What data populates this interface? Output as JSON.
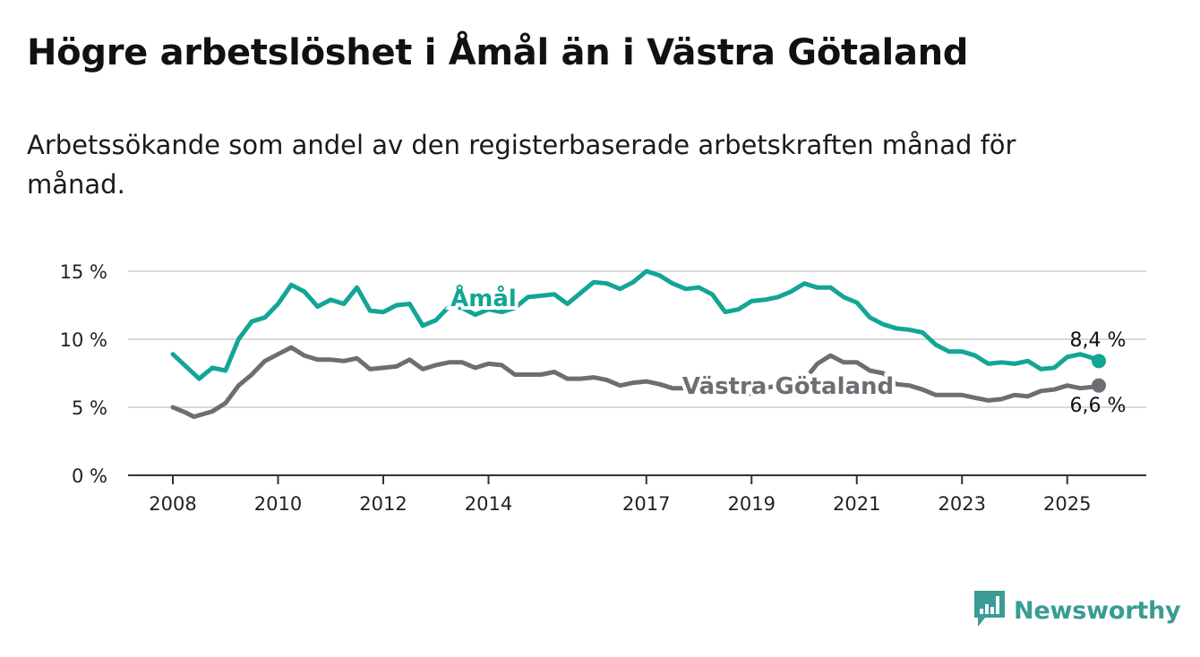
{
  "title": "Högre arbetslöshet i Åmål än i Västra Götaland",
  "subtitle": "Arbetssökande som andel av den registerbaserade arbetskraften månad för månad.",
  "brand": "Newsworthy",
  "colors": {
    "amal": "#13a596",
    "vg": "#6e6d74",
    "grid": "#d9d9d9",
    "axis": "#333333",
    "brand": "#3a9c93"
  },
  "chart_data": {
    "type": "line",
    "title": "Högre arbetslöshet i Åmål än i Västra Götaland",
    "subtitle": "Arbetssökande som andel av den registerbaserade arbetskraften månad för månad.",
    "x_ticks": [
      "2008",
      "2010",
      "2012",
      "2014",
      "2017",
      "2019",
      "2021",
      "2023",
      "2025"
    ],
    "y_ticks": [
      "0 %",
      "5 %",
      "10 %",
      "15 %"
    ],
    "xlim": [
      2008.0,
      2026.4
    ],
    "ylim": [
      0,
      15.7
    ],
    "grid": "horizontal",
    "legend": "direct labels on lines",
    "series": [
      {
        "name": "Åmål",
        "end_label": "8,4 %",
        "points": [
          [
            2008.0,
            8.9
          ],
          [
            2008.25,
            8.0
          ],
          [
            2008.5,
            7.1
          ],
          [
            2008.75,
            7.9
          ],
          [
            2009.0,
            7.7
          ],
          [
            2009.25,
            10.0
          ],
          [
            2009.5,
            11.3
          ],
          [
            2009.75,
            11.6
          ],
          [
            2010.0,
            12.6
          ],
          [
            2010.25,
            14.0
          ],
          [
            2010.5,
            13.5
          ],
          [
            2010.75,
            12.4
          ],
          [
            2011.0,
            12.9
          ],
          [
            2011.25,
            12.6
          ],
          [
            2011.5,
            13.8
          ],
          [
            2011.75,
            12.1
          ],
          [
            2012.0,
            12.0
          ],
          [
            2012.25,
            12.5
          ],
          [
            2012.5,
            12.6
          ],
          [
            2012.75,
            11.0
          ],
          [
            2013.0,
            11.4
          ],
          [
            2013.25,
            12.4
          ],
          [
            2013.5,
            12.3
          ],
          [
            2013.75,
            11.8
          ],
          [
            2014.0,
            12.2
          ],
          [
            2014.25,
            12.0
          ],
          [
            2014.5,
            12.3
          ],
          [
            2014.75,
            13.1
          ],
          [
            2015.0,
            13.2
          ],
          [
            2015.25,
            13.3
          ],
          [
            2015.5,
            12.6
          ],
          [
            2015.75,
            13.4
          ],
          [
            2016.0,
            14.2
          ],
          [
            2016.25,
            14.1
          ],
          [
            2016.5,
            13.7
          ],
          [
            2016.75,
            14.2
          ],
          [
            2017.0,
            15.0
          ],
          [
            2017.25,
            14.7
          ],
          [
            2017.5,
            14.1
          ],
          [
            2017.75,
            13.7
          ],
          [
            2018.0,
            13.8
          ],
          [
            2018.25,
            13.3
          ],
          [
            2018.5,
            12.0
          ],
          [
            2018.75,
            12.2
          ],
          [
            2019.0,
            12.8
          ],
          [
            2019.25,
            12.9
          ],
          [
            2019.5,
            13.1
          ],
          [
            2019.75,
            13.5
          ],
          [
            2020.0,
            14.1
          ],
          [
            2020.25,
            13.8
          ],
          [
            2020.5,
            13.8
          ],
          [
            2020.75,
            13.1
          ],
          [
            2021.0,
            12.7
          ],
          [
            2021.25,
            11.6
          ],
          [
            2021.5,
            11.1
          ],
          [
            2021.75,
            10.8
          ],
          [
            2022.0,
            10.7
          ],
          [
            2022.25,
            10.5
          ],
          [
            2022.5,
            9.6
          ],
          [
            2022.75,
            9.1
          ],
          [
            2023.0,
            9.1
          ],
          [
            2023.25,
            8.8
          ],
          [
            2023.5,
            8.2
          ],
          [
            2023.75,
            8.3
          ],
          [
            2024.0,
            8.2
          ],
          [
            2024.25,
            8.4
          ],
          [
            2024.5,
            7.8
          ],
          [
            2024.75,
            7.9
          ],
          [
            2025.0,
            8.7
          ],
          [
            2025.25,
            8.9
          ],
          [
            2025.5,
            8.6
          ],
          [
            2025.6,
            8.4
          ]
        ]
      },
      {
        "name": "Västra Götaland",
        "end_label": "6,6 %",
        "points": [
          [
            2008.0,
            5.0
          ],
          [
            2008.25,
            4.6
          ],
          [
            2008.4,
            4.3
          ],
          [
            2008.75,
            4.7
          ],
          [
            2009.0,
            5.3
          ],
          [
            2009.25,
            6.6
          ],
          [
            2009.5,
            7.4
          ],
          [
            2009.75,
            8.4
          ],
          [
            2010.0,
            8.9
          ],
          [
            2010.25,
            9.4
          ],
          [
            2010.5,
            8.8
          ],
          [
            2010.75,
            8.5
          ],
          [
            2011.0,
            8.5
          ],
          [
            2011.25,
            8.4
          ],
          [
            2011.5,
            8.6
          ],
          [
            2011.75,
            7.8
          ],
          [
            2012.0,
            7.9
          ],
          [
            2012.25,
            8.0
          ],
          [
            2012.5,
            8.5
          ],
          [
            2012.75,
            7.8
          ],
          [
            2013.0,
            8.1
          ],
          [
            2013.25,
            8.3
          ],
          [
            2013.5,
            8.3
          ],
          [
            2013.75,
            7.9
          ],
          [
            2014.0,
            8.2
          ],
          [
            2014.25,
            8.1
          ],
          [
            2014.5,
            7.4
          ],
          [
            2014.75,
            7.4
          ],
          [
            2015.0,
            7.4
          ],
          [
            2015.25,
            7.6
          ],
          [
            2015.5,
            7.1
          ],
          [
            2015.75,
            7.1
          ],
          [
            2016.0,
            7.2
          ],
          [
            2016.25,
            7.0
          ],
          [
            2016.5,
            6.6
          ],
          [
            2016.75,
            6.8
          ],
          [
            2017.0,
            6.9
          ],
          [
            2017.25,
            6.7
          ],
          [
            2017.5,
            6.4
          ],
          [
            2017.75,
            6.4
          ],
          [
            2018.0,
            6.5
          ],
          [
            2018.25,
            6.4
          ],
          [
            2018.5,
            6.3
          ],
          [
            2018.75,
            6.0
          ],
          [
            2019.0,
            6.0
          ],
          [
            2019.25,
            6.4
          ],
          [
            2019.5,
            6.6
          ],
          [
            2019.75,
            6.8
          ],
          [
            2020.0,
            7.0
          ],
          [
            2020.25,
            8.2
          ],
          [
            2020.5,
            8.8
          ],
          [
            2020.75,
            8.3
          ],
          [
            2021.0,
            8.3
          ],
          [
            2021.25,
            7.7
          ],
          [
            2021.5,
            7.5
          ],
          [
            2021.75,
            6.7
          ],
          [
            2022.0,
            6.6
          ],
          [
            2022.25,
            6.3
          ],
          [
            2022.5,
            5.9
          ],
          [
            2022.75,
            5.9
          ],
          [
            2023.0,
            5.9
          ],
          [
            2023.25,
            5.7
          ],
          [
            2023.5,
            5.5
          ],
          [
            2023.75,
            5.6
          ],
          [
            2024.0,
            5.9
          ],
          [
            2024.25,
            5.8
          ],
          [
            2024.5,
            6.2
          ],
          [
            2024.75,
            6.3
          ],
          [
            2025.0,
            6.6
          ],
          [
            2025.25,
            6.4
          ],
          [
            2025.5,
            6.5
          ],
          [
            2025.6,
            6.6
          ]
        ]
      }
    ]
  }
}
